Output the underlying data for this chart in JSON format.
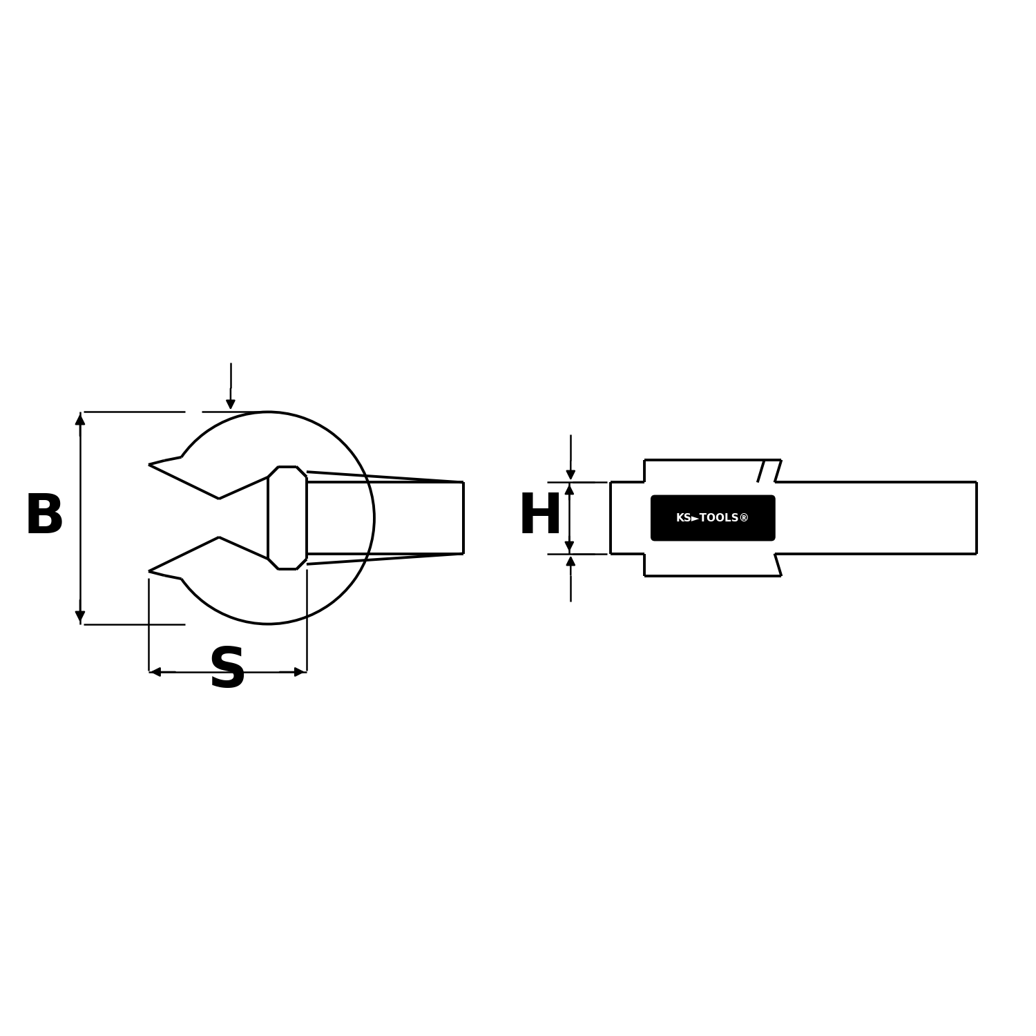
{
  "bg_color": "#ffffff",
  "line_color": "#000000",
  "lw_main": 2.8,
  "lw_dim": 1.8,
  "label_B": "B",
  "label_S": "S",
  "label_H": "H",
  "label_fontsize": 58,
  "fig_width": 15.0,
  "fig_height": 15.0
}
